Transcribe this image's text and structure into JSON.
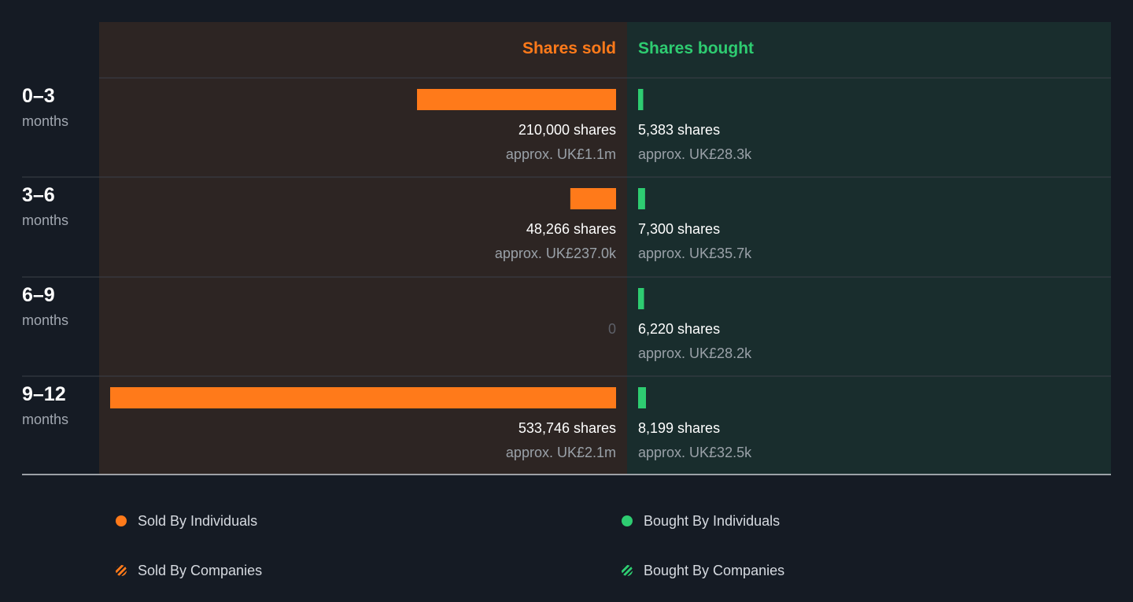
{
  "colors": {
    "background": "#151b24",
    "sold_panel": "#2d2523",
    "bought_panel": "#192d2d",
    "sold": "#ff7a1a",
    "bought": "#2ecc71",
    "divider": "#3a4048",
    "axis": "#c8ccd2"
  },
  "chart_data": {
    "type": "bar",
    "orientation": "horizontal-diverging",
    "categories": [
      "0–3 months",
      "3–6 months",
      "6–9 months",
      "9–12 months"
    ],
    "series": [
      {
        "name": "Shares sold",
        "values": [
          210000,
          48266,
          0,
          533746
        ]
      },
      {
        "name": "Shares bought",
        "values": [
          5383,
          7300,
          6220,
          8199
        ]
      }
    ],
    "title": "",
    "grid": false
  },
  "headers": {
    "sold": "Shares sold",
    "bought": "Shares bought"
  },
  "rows": [
    {
      "range": "0–3",
      "unit": "months",
      "sold": {
        "shares": 210000,
        "label": "210,000 shares",
        "approx": "approx. UK£1.1m"
      },
      "bought": {
        "shares": 5383,
        "label": "5,383 shares",
        "approx": "approx. UK£28.3k"
      }
    },
    {
      "range": "3–6",
      "unit": "months",
      "sold": {
        "shares": 48266,
        "label": "48,266 shares",
        "approx": "approx. UK£237.0k"
      },
      "bought": {
        "shares": 7300,
        "label": "7,300 shares",
        "approx": "approx. UK£35.7k"
      }
    },
    {
      "range": "6–9",
      "unit": "months",
      "sold": {
        "shares": 0,
        "label": "0",
        "approx": ""
      },
      "bought": {
        "shares": 6220,
        "label": "6,220 shares",
        "approx": "approx. UK£28.2k"
      }
    },
    {
      "range": "9–12",
      "unit": "months",
      "sold": {
        "shares": 533746,
        "label": "533,746 shares",
        "approx": "approx. UK£2.1m"
      },
      "bought": {
        "shares": 8199,
        "label": "8,199 shares",
        "approx": "approx. UK£32.5k"
      }
    }
  ],
  "legend": [
    {
      "label": "Sold By Individuals",
      "color": "#ff7a1a",
      "style": "solid"
    },
    {
      "label": "Bought By Individuals",
      "color": "#2ecc71",
      "style": "solid"
    },
    {
      "label": "Sold By Companies",
      "color": "#ff7a1a",
      "style": "striped"
    },
    {
      "label": "Bought By Companies",
      "color": "#2ecc71",
      "style": "striped"
    }
  ]
}
